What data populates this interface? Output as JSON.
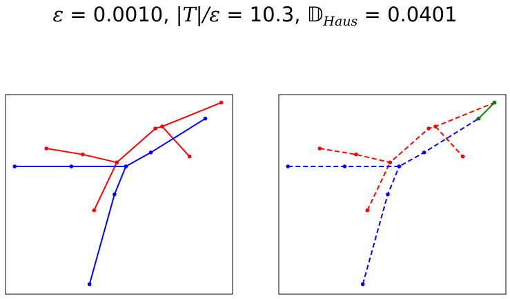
{
  "title": {
    "eps_symbol": "ε",
    "eq": " = ",
    "eps_value": "0.0010",
    "sep": ", ",
    "ratio_label": "|T|/ε",
    "ratio_value": "10.3",
    "haus_symbol": "𝔻",
    "haus_sub": "Haus",
    "haus_value": "0.0401"
  },
  "colors": {
    "red": "#ff0000",
    "blue": "#0000ff",
    "green": "#008000",
    "frame": "#000000"
  },
  "chart_data": [
    {
      "type": "line",
      "panel": "left",
      "xlim": [
        0,
        1
      ],
      "ylim": [
        0,
        1
      ],
      "grid": false,
      "series": [
        {
          "color": "#ff0000",
          "style": "solid",
          "points": [
            [
              0.18,
              0.73
            ],
            [
              0.34,
              0.7
            ],
            [
              0.49,
              0.66
            ],
            [
              0.66,
              0.83
            ],
            [
              0.69,
              0.84
            ],
            [
              0.95,
              0.96
            ]
          ]
        },
        {
          "color": "#ff0000",
          "style": "solid",
          "points": [
            [
              0.39,
              0.42
            ],
            [
              0.49,
              0.66
            ]
          ]
        },
        {
          "color": "#ff0000",
          "style": "solid",
          "points": [
            [
              0.69,
              0.84
            ],
            [
              0.81,
              0.69
            ]
          ]
        },
        {
          "color": "#0000ff",
          "style": "solid",
          "points": [
            [
              0.04,
              0.64
            ],
            [
              0.29,
              0.64
            ],
            [
              0.53,
              0.64
            ],
            [
              0.64,
              0.71
            ],
            [
              0.88,
              0.88
            ]
          ]
        },
        {
          "color": "#0000ff",
          "style": "solid",
          "points": [
            [
              0.37,
              0.05
            ],
            [
              0.48,
              0.5
            ],
            [
              0.53,
              0.64
            ]
          ]
        }
      ]
    },
    {
      "type": "line",
      "panel": "right",
      "xlim": [
        0,
        1
      ],
      "ylim": [
        0,
        1
      ],
      "grid": false,
      "series": [
        {
          "color": "#ff0000",
          "style": "dashed",
          "points": [
            [
              0.18,
              0.73
            ],
            [
              0.34,
              0.7
            ],
            [
              0.49,
              0.66
            ],
            [
              0.66,
              0.83
            ],
            [
              0.69,
              0.84
            ],
            [
              0.95,
              0.96
            ]
          ]
        },
        {
          "color": "#ff0000",
          "style": "dashed",
          "points": [
            [
              0.39,
              0.42
            ],
            [
              0.49,
              0.66
            ]
          ]
        },
        {
          "color": "#ff0000",
          "style": "dashed",
          "points": [
            [
              0.69,
              0.84
            ],
            [
              0.81,
              0.69
            ]
          ]
        },
        {
          "color": "#0000ff",
          "style": "dashed",
          "points": [
            [
              0.04,
              0.64
            ],
            [
              0.29,
              0.64
            ],
            [
              0.53,
              0.64
            ],
            [
              0.64,
              0.71
            ],
            [
              0.88,
              0.88
            ]
          ]
        },
        {
          "color": "#0000ff",
          "style": "dashed",
          "points": [
            [
              0.37,
              0.05
            ],
            [
              0.48,
              0.5
            ],
            [
              0.53,
              0.64
            ]
          ]
        },
        {
          "color": "#008000",
          "style": "solid",
          "points": [
            [
              0.88,
              0.88
            ],
            [
              0.95,
              0.96
            ]
          ]
        }
      ]
    }
  ]
}
